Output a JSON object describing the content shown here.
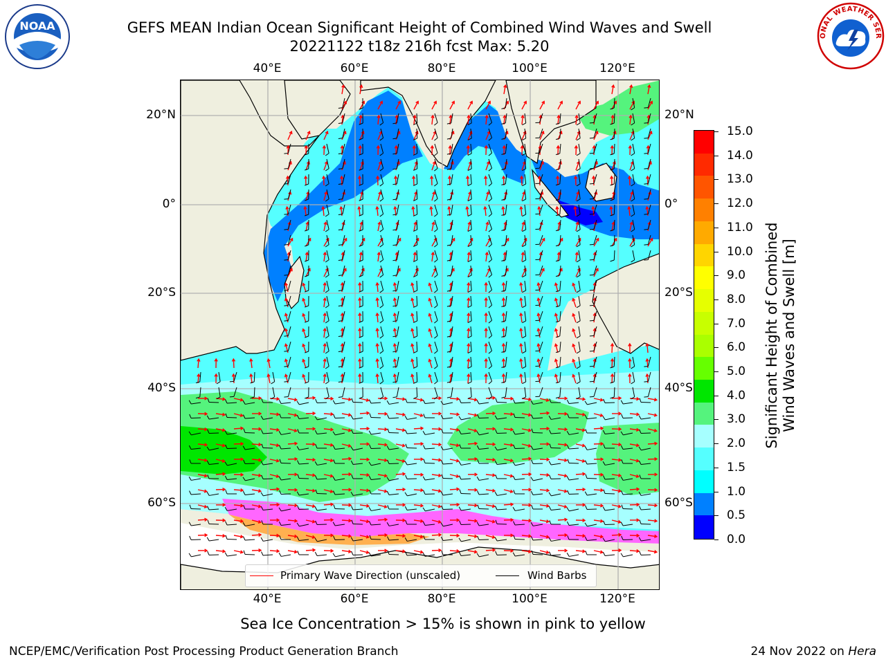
{
  "title_line1": "GEFS MEAN Indian Ocean Significant Height of Combined Wind Waves and Swell",
  "title_line2": "20221122 t18z 216h fcst   Max: 5.20",
  "lon_labels": [
    "40°E",
    "60°E",
    "80°E",
    "100°E",
    "120°E"
  ],
  "lat_labels": [
    "20°N",
    "0°",
    "20°S",
    "40°S",
    "60°S"
  ],
  "legend": {
    "wave_label": "Primary Wave Direction (unscaled)",
    "wind_label": "Wind Barbs",
    "wave_color": "#ff0000",
    "wind_color": "#000000"
  },
  "colorbar": {
    "label_line1": "Significant Height of Combined",
    "label_line2": "Wind Waves and Swell [m]",
    "ticks": [
      "15.0",
      "14.0",
      "13.0",
      "12.0",
      "11.0",
      "10.0",
      "9.0",
      "8.0",
      "7.0",
      "6.0",
      "5.0",
      "4.0",
      "3.0",
      "2.0",
      "1.5",
      "1.0",
      "0.5",
      "0.0"
    ],
    "colors": [
      "#ff0000",
      "#ff2a00",
      "#ff5500",
      "#ff8000",
      "#ffaa00",
      "#ffd500",
      "#ffff00",
      "#e6ff00",
      "#c8ff00",
      "#aaff00",
      "#66ff00",
      "#00e600",
      "#55f37d",
      "#a6ffff",
      "#55ffff",
      "#00ffff",
      "#0080ff",
      "#0000ff"
    ]
  },
  "subcaption": "Sea Ice Concentration > 15% is shown in pink to yellow",
  "footer_left": "NCEP/EMC/Verification Post Processing Product Generation Branch",
  "footer_right_prefix": "24 Nov 2022 on ",
  "footer_right_host": "Hera",
  "noaa_logo_text": "NOAA",
  "nws_logo_text": "NATIONAL WEATHER SERVICE",
  "map_colors": {
    "land": "#efefdf",
    "cyan_light": "#a6ffff",
    "cyan_mid": "#55ffff",
    "cyan": "#00ffff",
    "blue_mid": "#0080ff",
    "blue": "#0000ff",
    "green_light": "#55f37d",
    "green": "#00e600",
    "ice_pink": "#ff66ff",
    "ice_orange": "#ffb050",
    "grid": "#b0b0b0"
  }
}
